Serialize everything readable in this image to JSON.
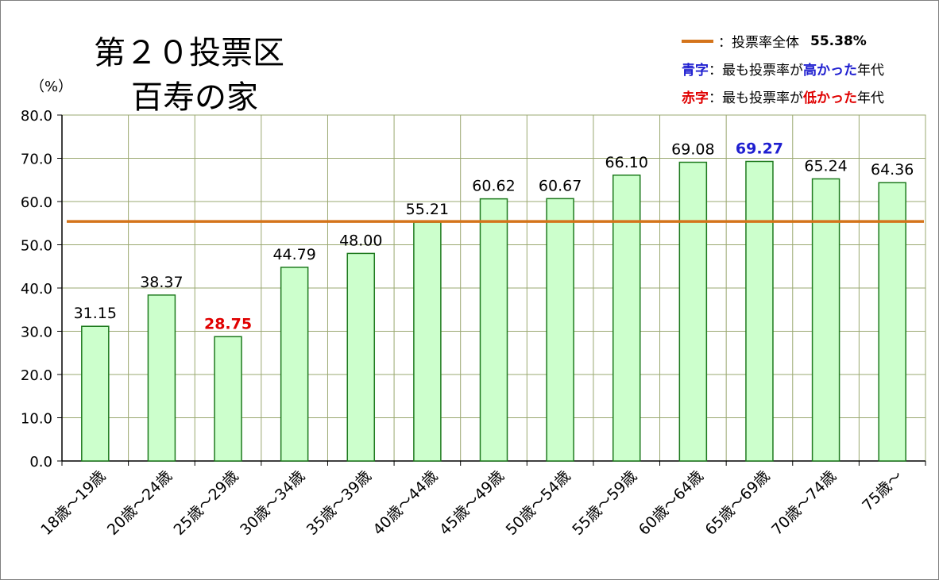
{
  "title_line1": "第２０投票区",
  "title_line2": "百寿の家",
  "y_unit": "（%）",
  "legend": {
    "avg_sep": "：投票率全体",
    "avg_value": "55.38%",
    "blue_label": "青字",
    "blue_pre": "：最も投票率が",
    "blue_word": "高かった",
    "blue_post": "年代",
    "red_label": "赤字",
    "red_pre": "：最も投票率が",
    "red_word": "低かった",
    "red_post": "年代"
  },
  "colors": {
    "bar_fill": "#ccffcc",
    "bar_stroke": "#1e7a1e",
    "avg_line": "#d4741b",
    "highlight_high": "#1f1fd0",
    "highlight_low": "#e00000",
    "grid": "#9aa870"
  },
  "chart_data": {
    "type": "bar",
    "categories": [
      "18歳～19歳",
      "20歳～24歳",
      "25歳～29歳",
      "30歳～34歳",
      "35歳～39歳",
      "40歳～44歳",
      "45歳～49歳",
      "50歳～54歳",
      "55歳～59歳",
      "60歳～64歳",
      "65歳～69歳",
      "70歳～74歳",
      "75歳～"
    ],
    "values": [
      31.15,
      38.37,
      28.75,
      44.79,
      48.0,
      55.21,
      60.62,
      60.67,
      66.1,
      69.08,
      69.27,
      65.24,
      64.36
    ],
    "value_labels": [
      "31.15",
      "38.37",
      "28.75",
      "44.79",
      "48.00",
      "55.21",
      "60.62",
      "60.67",
      "66.10",
      "69.08",
      "69.27",
      "65.24",
      "64.36"
    ],
    "ylim": [
      0,
      80
    ],
    "yticks": [
      "0.0",
      "10.0",
      "20.0",
      "30.0",
      "40.0",
      "50.0",
      "60.0",
      "70.0",
      "80.0"
    ],
    "reference_line": 55.38,
    "highest_index": 10,
    "lowest_index": 2,
    "grid": true
  }
}
